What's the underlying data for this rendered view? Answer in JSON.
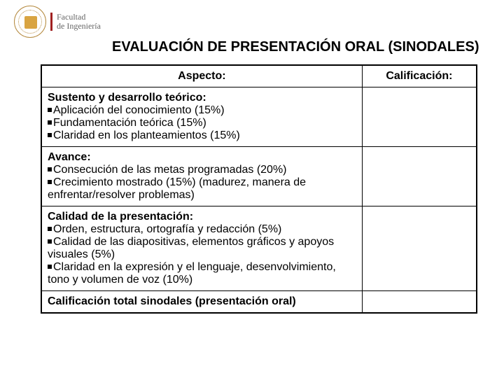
{
  "logo": {
    "line1": "Facultad",
    "line2": "de Ingeniería"
  },
  "title": "EVALUACIÓN DE PRESENTACIÓN ORAL (SINODALES)",
  "headers": {
    "aspecto": "Aspecto:",
    "calificacion": "Calificación:"
  },
  "rows": [
    {
      "heading": "Sustento y desarrollo teórico:",
      "items": [
        "Aplicación del conocimiento (15%)",
        "Fundamentación teórica (15%)",
        "Claridad en los planteamientos (15%)"
      ],
      "calif": ""
    },
    {
      "heading": "Avance:",
      "items": [
        "Consecución de las metas programadas (20%)",
        "Crecimiento mostrado (15%) (madurez, manera de enfrentar/resolver problemas)"
      ],
      "calif": ""
    },
    {
      "heading": "Calidad de la presentación:",
      "items": [
        "Orden, estructura, ortografía y redacción (5%)",
        "Calidad de las diapositivas, elementos gráficos y apoyos visuales (5%)",
        "Claridad en la expresión y el lenguaje, desenvolvimiento, tono y volumen de voz (10%)"
      ],
      "calif": ""
    },
    {
      "heading": "Calificación total sinodales (presentación oral)",
      "items": [],
      "calif": ""
    }
  ]
}
